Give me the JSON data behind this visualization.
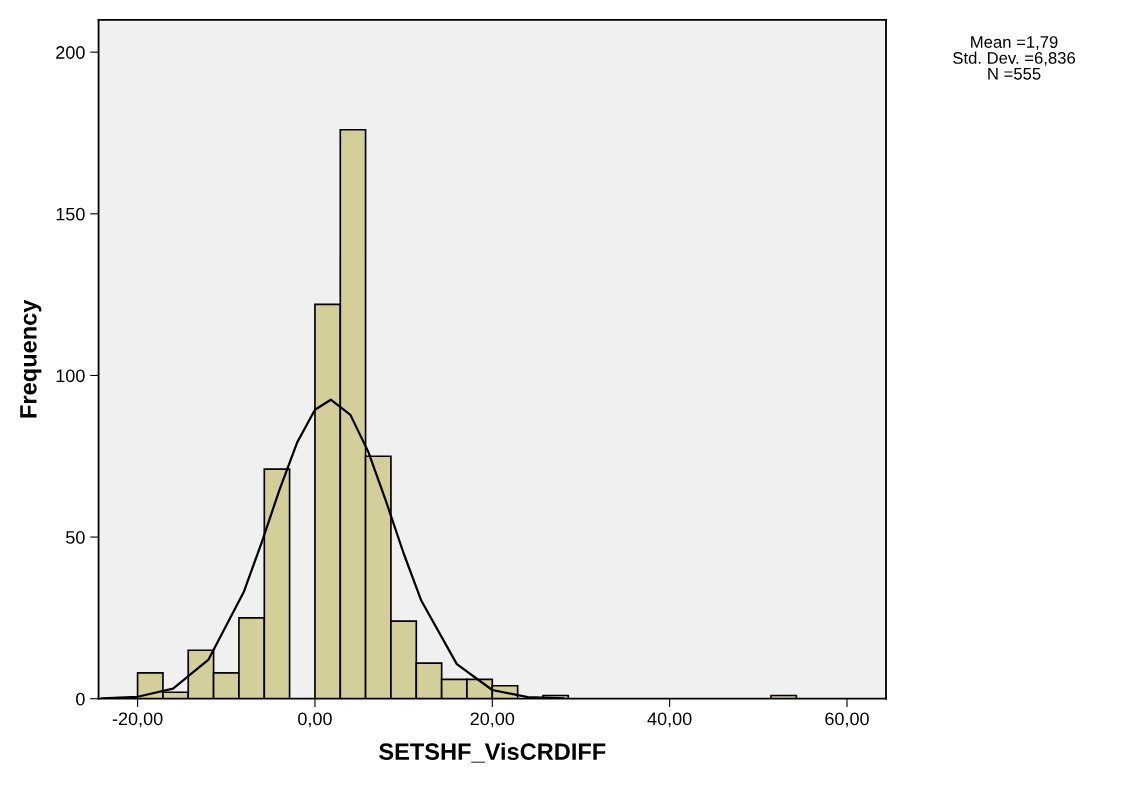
{
  "chart_data": {
    "type": "histogram",
    "xlabel": "SETSHF_VisCRDIFF",
    "ylabel": "Frequency",
    "bins": [
      -20,
      -17.14,
      -14.29,
      -11.43,
      -8.57,
      -5.71,
      -2.86,
      0,
      2.86,
      5.71,
      8.57,
      11.43,
      14.29,
      17.14,
      20,
      22.86,
      25.71,
      28.57,
      31.43,
      34.29,
      37.14,
      40,
      42.86,
      45.71,
      48.57,
      51.43,
      54.29
    ],
    "values": [
      8,
      2,
      15,
      8,
      25,
      71,
      0,
      122,
      176,
      75,
      24,
      11,
      6,
      6,
      4,
      0,
      1,
      0,
      0,
      0,
      0,
      0,
      0,
      0,
      0,
      1
    ],
    "color": "#d4cf9a",
    "series": [
      {
        "type": "line",
        "color": "#000000",
        "x": [
          -24,
          -20,
          -16,
          -12,
          -8,
          -6,
          -4,
          -2,
          0,
          1.79,
          4,
          6,
          8,
          10,
          12,
          16,
          20,
          24,
          28
        ],
        "values": [
          0.1,
          0.6,
          3.1,
          12.1,
          33.2,
          48.4,
          64.6,
          79.3,
          89.4,
          92.5,
          87.8,
          76.5,
          61.2,
          45.0,
          30.3,
          10.7,
          2.7,
          0.5,
          0.1
        ]
      }
    ],
    "xlim": [
      -24.4,
      64.4
    ],
    "ylim": [
      0,
      210
    ],
    "xticks": [
      {
        "value": -20,
        "label": "-20,00"
      },
      {
        "value": 0,
        "label": "0,00"
      },
      {
        "value": 20,
        "label": "20,00"
      },
      {
        "value": 40,
        "label": "40,00"
      },
      {
        "value": 60,
        "label": "60,00"
      }
    ],
    "yticks": [
      0,
      50,
      100,
      150,
      200
    ],
    "annotations": [
      "Mean =1,79",
      "Std. Dev. =6,836",
      "N =555"
    ],
    "grid": false,
    "legend": false
  }
}
